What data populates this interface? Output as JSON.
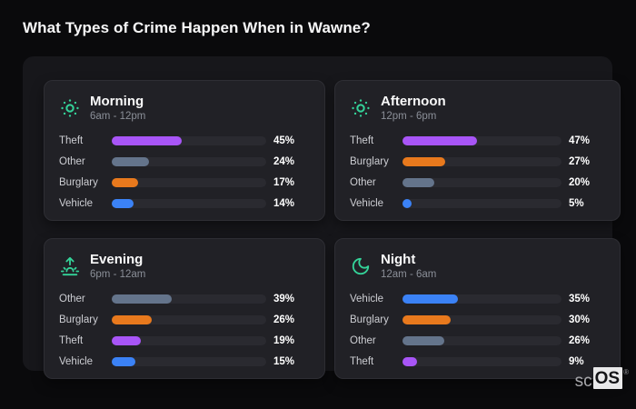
{
  "page": {
    "title": "What Types of Crime Happen When in Wawne?"
  },
  "logo": {
    "prefix": "sc",
    "suffix": "OS",
    "registered": "®"
  },
  "colors": {
    "background": "#0a0a0c",
    "panel": "#17171b",
    "card": "#212126",
    "card_border": "#2e2e34",
    "track": "#2a2a30",
    "accent_teal": "#34d399",
    "theft": "#a855f7",
    "other": "#64748b",
    "burglary": "#e8791d",
    "vehicle": "#3b82f6"
  },
  "panels": [
    {
      "title": "Morning",
      "time_range": "6am - 12pm",
      "icon": "sun-icon",
      "rows": [
        {
          "label": "Theft",
          "value": 45,
          "percent": "45%",
          "color_key": "theft"
        },
        {
          "label": "Other",
          "value": 24,
          "percent": "24%",
          "color_key": "other"
        },
        {
          "label": "Burglary",
          "value": 17,
          "percent": "17%",
          "color_key": "burglary"
        },
        {
          "label": "Vehicle",
          "value": 14,
          "percent": "14%",
          "color_key": "vehicle"
        }
      ]
    },
    {
      "title": "Afternoon",
      "time_range": "12pm - 6pm",
      "icon": "sun-icon",
      "rows": [
        {
          "label": "Theft",
          "value": 47,
          "percent": "47%",
          "color_key": "theft"
        },
        {
          "label": "Burglary",
          "value": 27,
          "percent": "27%",
          "color_key": "burglary"
        },
        {
          "label": "Other",
          "value": 20,
          "percent": "20%",
          "color_key": "other"
        },
        {
          "label": "Vehicle",
          "value": 5,
          "percent": "5%",
          "color_key": "vehicle"
        }
      ]
    },
    {
      "title": "Evening",
      "time_range": "6pm - 12am",
      "icon": "sunrise-icon",
      "rows": [
        {
          "label": "Other",
          "value": 39,
          "percent": "39%",
          "color_key": "other"
        },
        {
          "label": "Burglary",
          "value": 26,
          "percent": "26%",
          "color_key": "burglary"
        },
        {
          "label": "Theft",
          "value": 19,
          "percent": "19%",
          "color_key": "theft"
        },
        {
          "label": "Vehicle",
          "value": 15,
          "percent": "15%",
          "color_key": "vehicle"
        }
      ]
    },
    {
      "title": "Night",
      "time_range": "12am - 6am",
      "icon": "moon-icon",
      "rows": [
        {
          "label": "Vehicle",
          "value": 35,
          "percent": "35%",
          "color_key": "vehicle"
        },
        {
          "label": "Burglary",
          "value": 30,
          "percent": "30%",
          "color_key": "burglary"
        },
        {
          "label": "Other",
          "value": 26,
          "percent": "26%",
          "color_key": "other"
        },
        {
          "label": "Theft",
          "value": 9,
          "percent": "9%",
          "color_key": "theft"
        }
      ]
    }
  ],
  "chart_data": [
    {
      "type": "bar",
      "orientation": "horizontal",
      "title": "Morning",
      "subtitle": "6am - 12pm",
      "categories": [
        "Theft",
        "Other",
        "Burglary",
        "Vehicle"
      ],
      "values": [
        45,
        24,
        17,
        14
      ],
      "unit": "%",
      "xlim": [
        0,
        100
      ],
      "grid": false,
      "legend": false
    },
    {
      "type": "bar",
      "orientation": "horizontal",
      "title": "Afternoon",
      "subtitle": "12pm - 6pm",
      "categories": [
        "Theft",
        "Burglary",
        "Other",
        "Vehicle"
      ],
      "values": [
        47,
        27,
        20,
        5
      ],
      "unit": "%",
      "xlim": [
        0,
        100
      ],
      "grid": false,
      "legend": false
    },
    {
      "type": "bar",
      "orientation": "horizontal",
      "title": "Evening",
      "subtitle": "6pm - 12am",
      "categories": [
        "Other",
        "Burglary",
        "Theft",
        "Vehicle"
      ],
      "values": [
        39,
        26,
        19,
        15
      ],
      "unit": "%",
      "xlim": [
        0,
        100
      ],
      "grid": false,
      "legend": false
    },
    {
      "type": "bar",
      "orientation": "horizontal",
      "title": "Night",
      "subtitle": "12am - 6am",
      "categories": [
        "Vehicle",
        "Burglary",
        "Other",
        "Theft"
      ],
      "values": [
        35,
        30,
        26,
        9
      ],
      "unit": "%",
      "xlim": [
        0,
        100
      ],
      "grid": false,
      "legend": false
    }
  ]
}
